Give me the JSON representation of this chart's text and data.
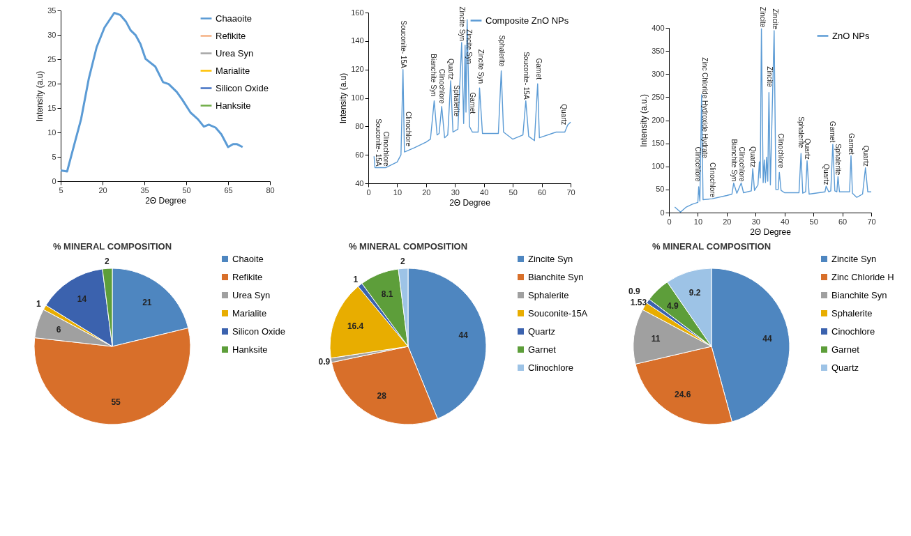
{
  "chart_data": [
    {
      "type": "line",
      "xlabel": "2Θ Degree",
      "ylabel": "Intensity (a.u)",
      "xlim": [
        5,
        80
      ],
      "xticks": [
        5,
        20,
        35,
        50,
        65,
        80
      ],
      "ylim": [
        0,
        35
      ],
      "yticks": [
        0,
        5,
        10,
        15,
        20,
        25,
        30,
        35
      ],
      "legend": "top right",
      "series": [
        {
          "name": "Chaaoite",
          "color": "#5b9bd5",
          "x": [
            5,
            7.3,
            9.9,
            12.3,
            15.1,
            17.9,
            20.7,
            24.2,
            26.3,
            28.4,
            30.1,
            31.9,
            33.6,
            35.4,
            38.9,
            41.7,
            43.7,
            46.6,
            48.6,
            51.5,
            54.2,
            56.3,
            58.1,
            60.5,
            62.6,
            65,
            66.8,
            68.2,
            70.2
          ],
          "values": [
            2.2,
            2,
            7.6,
            12.7,
            21.1,
            27.5,
            31.5,
            34.5,
            34.1,
            32.7,
            30.9,
            29.9,
            28.1,
            25.1,
            23.5,
            20.3,
            19.9,
            18.3,
            16.7,
            14.1,
            12.7,
            11.2,
            11.6,
            11,
            9.6,
            7,
            7.6,
            7.6,
            7
          ]
        },
        {
          "name": "Refikite",
          "color": "#f4b183"
        },
        {
          "name": "Urea Syn",
          "color": "#a5a5a5"
        },
        {
          "name": "Marialite",
          "color": "#ffc000"
        },
        {
          "name": "Silicon Oxide",
          "color": "#4472c4"
        },
        {
          "name": "Hanksite",
          "color": "#70ad47"
        }
      ]
    },
    {
      "type": "line",
      "xlabel": "2Θ Degree",
      "ylabel": "Intensity (a.u)",
      "xlim": [
        0,
        70
      ],
      "xticks": [
        0,
        10,
        20,
        30,
        40,
        50,
        60,
        70
      ],
      "ylim": [
        40,
        160
      ],
      "yticks": [
        40,
        60,
        80,
        100,
        120,
        140,
        160
      ],
      "legend": "top right",
      "x": [
        2,
        2.3,
        6,
        10,
        11.3,
        12,
        12.5,
        16,
        20,
        21.5,
        22.8,
        23.8,
        24.5,
        25.4,
        26.4,
        27.5,
        28.5,
        29.3,
        31,
        32.3,
        33,
        33.5,
        33.8,
        34.2,
        35,
        36,
        38,
        38.5,
        39.5,
        45,
        46,
        46.8,
        50,
        53.5,
        54.5,
        55.5,
        57.5,
        58.6,
        59.2,
        65,
        68,
        69,
        70
      ],
      "series": [
        {
          "name": "Composite ZnO NPs",
          "color": "#5b9bd5",
          "values": [
            59,
            51,
            51,
            55,
            60,
            120,
            62,
            65,
            69,
            71,
            98,
            74,
            75,
            94,
            72,
            74,
            112,
            76,
            78,
            139,
            82,
            137,
            90,
            155,
            80,
            76,
            76,
            107,
            75,
            75,
            119,
            76,
            71,
            74,
            98,
            73,
            70,
            110,
            72,
            76,
            76,
            81,
            83
          ]
        }
      ],
      "annotations": [
        {
          "text": "Souconite- 15A",
          "x": 3.3,
          "y": 51
        },
        {
          "text": "Clinochlore",
          "x": 6,
          "y": 51
        },
        {
          "text": "Souconite- 15A",
          "x": 12,
          "y": 120
        },
        {
          "text": "Clinochlore",
          "x": 13.8,
          "y": 65
        },
        {
          "text": "Bianchite Syn",
          "x": 22.5,
          "y": 100
        },
        {
          "text": "Clinochlore",
          "x": 25.3,
          "y": 95
        },
        {
          "text": "Quartz",
          "x": 28.5,
          "y": 112
        },
        {
          "text": "Sphalerite",
          "x": 30.3,
          "y": 86
        },
        {
          "text": "Zincite Syn",
          "x": 32.3,
          "y": 139
        },
        {
          "text": "Zincite Syn",
          "x": 34.8,
          "y": 123
        },
        {
          "text": "Garnet",
          "x": 36,
          "y": 88
        },
        {
          "text": "Zincite Syn",
          "x": 38.8,
          "y": 109
        },
        {
          "text": "Sphalerite",
          "x": 46,
          "y": 121
        },
        {
          "text": "Souconite- 15A",
          "x": 54.5,
          "y": 98
        },
        {
          "text": "Garnet",
          "x": 59,
          "y": 112
        },
        {
          "text": "Quartz",
          "x": 67.5,
          "y": 80
        }
      ]
    },
    {
      "type": "line",
      "xlabel": "2Θ Degree",
      "ylabel": "Intensity (a.u.)",
      "xlim": [
        0,
        70
      ],
      "xticks": [
        0,
        10,
        20,
        30,
        40,
        50,
        60,
        70
      ],
      "ylim": [
        0,
        400
      ],
      "yticks": [
        0,
        50,
        100,
        150,
        200,
        250,
        300,
        350,
        400
      ],
      "legend": "top right",
      "x": [
        2,
        4,
        6,
        8,
        10,
        10.3,
        10.7,
        11.3,
        11.8,
        15,
        20,
        21.8,
        22.4,
        23.5,
        25,
        25.8,
        28.5,
        29,
        29.6,
        30.8,
        31.3,
        31.6,
        32,
        32.6,
        33,
        33.4,
        33.8,
        34.2,
        34.6,
        35.1,
        36.4,
        37,
        37.8,
        38.2,
        38.8,
        40,
        45,
        45.7,
        46.3,
        47.3,
        47.8,
        48.5,
        54,
        54.4,
        55.3,
        56,
        56.7,
        57.4,
        58.1,
        58.5,
        59,
        62.5,
        63,
        63.5,
        65,
        67,
        68,
        68.8,
        70
      ],
      "series": [
        {
          "name": "ZnO NPs",
          "color": "#5b9bd5",
          "values": [
            12,
            1,
            12,
            18,
            22,
            56,
            25,
            255,
            28,
            30,
            37,
            40,
            64,
            42,
            64,
            43,
            47,
            95,
            48,
            60,
            110,
            75,
            398,
            65,
            114,
            65,
            120,
            68,
            260,
            60,
            394,
            50,
            50,
            87,
            48,
            43,
            43,
            128,
            42,
            45,
            112,
            40,
            45,
            57,
            45,
            47,
            148,
            47,
            45,
            78,
            45,
            45,
            123,
            42,
            33,
            40,
            97,
            45,
            45
          ]
        }
      ],
      "annotations": [
        {
          "text": "Clinochlore",
          "x": 10,
          "y": 64
        },
        {
          "text": "Zinc Chloride Hydroxide Hydrate",
          "x": 12.3,
          "y": 115
        },
        {
          "text": "Clinochlore",
          "x": 15,
          "y": 30
        },
        {
          "text": "Bianchite Syn",
          "x": 22.4,
          "y": 64
        },
        {
          "text": "Clinochlore",
          "x": 25,
          "y": 64
        },
        {
          "text": "Quartz",
          "x": 29,
          "y": 95
        },
        {
          "text": "Zincite",
          "x": 32.3,
          "y": 398
        },
        {
          "text": "Zincite",
          "x": 34.8,
          "y": 269
        },
        {
          "text": "Zincite",
          "x": 36.6,
          "y": 394
        },
        {
          "text": "Clinochlore",
          "x": 38.5,
          "y": 93
        },
        {
          "text": "Sphalerite",
          "x": 45.7,
          "y": 137
        },
        {
          "text": "Quartz",
          "x": 47.8,
          "y": 112
        },
        {
          "text": "Quartz",
          "x": 54.4,
          "y": 57
        },
        {
          "text": "Garnet",
          "x": 56.6,
          "y": 149
        },
        {
          "text": "Sphalerite",
          "x": 58.5,
          "y": 78
        },
        {
          "text": "Garnet",
          "x": 63,
          "y": 123
        },
        {
          "text": "Quartz",
          "x": 68,
          "y": 97
        }
      ]
    },
    {
      "type": "pie",
      "title": "% MINERAL COMPOSITION",
      "legend": "right",
      "data_labels": true,
      "categories": [
        "Chaoite",
        "Refikite",
        "Urea Syn",
        "Marialite",
        "Silicon Oxide",
        "Hanksite"
      ],
      "values": [
        21,
        55,
        6,
        1,
        14,
        2
      ],
      "colors": [
        "#4e86c0",
        "#d86f2a",
        "#a0a0a0",
        "#e8ad00",
        "#3b62ae",
        "#5d9e3a"
      ]
    },
    {
      "type": "pie",
      "title": "% MINERAL COMPOSITION",
      "legend": "right",
      "data_labels": true,
      "categories": [
        "Zincite Syn",
        "Bianchite Syn",
        "Sphalerite",
        "Souconite-15A",
        "Quartz",
        "Garnet",
        "Clinochlore"
      ],
      "values": [
        44,
        28,
        0.9,
        16.4,
        1,
        8.1,
        2
      ],
      "colors": [
        "#4e86c0",
        "#d86f2a",
        "#a0a0a0",
        "#e8ad00",
        "#3b62ae",
        "#5d9e3a",
        "#9dc3e6"
      ]
    },
    {
      "type": "pie",
      "title": "% MINERAL COMPOSITION",
      "legend": "right",
      "data_labels": true,
      "categories": [
        "Zincite Syn",
        "Zinc Chloride H",
        "Bianchite Syn",
        "Sphalerite",
        "Cinochlore",
        "Garnet",
        "Quartz"
      ],
      "values": [
        44,
        24.6,
        11,
        1.53,
        0.9,
        4.9,
        9.2
      ],
      "colors": [
        "#4e86c0",
        "#d86f2a",
        "#a0a0a0",
        "#e8ad00",
        "#3b62ae",
        "#5d9e3a",
        "#9dc3e6"
      ]
    }
  ]
}
